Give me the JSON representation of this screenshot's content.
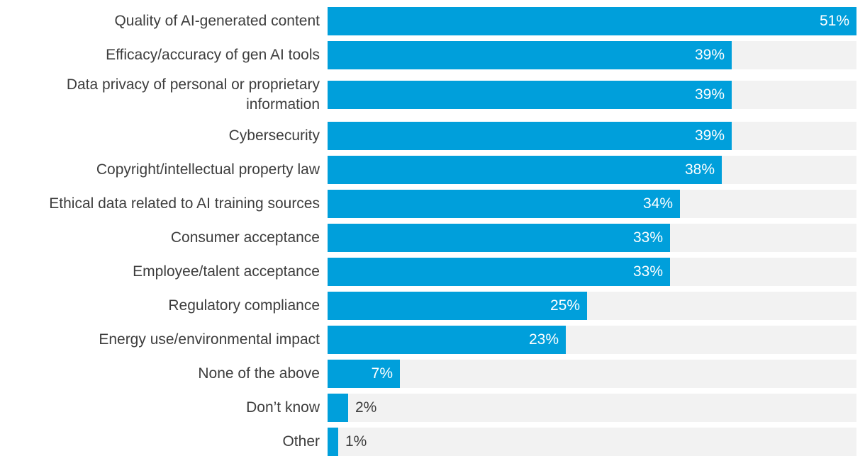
{
  "colors": {
    "bar": "#009fdb",
    "track": "#f2f2f2",
    "text": "#3d3d3d",
    "inside_label": "#ffffff"
  },
  "chart_data": {
    "type": "bar",
    "orientation": "horizontal",
    "title": "",
    "xlabel": "",
    "ylabel": "",
    "xlim": [
      0,
      51
    ],
    "value_suffix": "%",
    "categories": [
      "Quality of AI-generated content",
      "Efficacy/accuracy of gen AI tools",
      "Data privacy of personal or proprietary information",
      "Cybersecurity",
      "Copyright/intellectual property law",
      "Ethical data related to AI training sources",
      "Consumer acceptance",
      "Employee/talent acceptance",
      "Regulatory compliance",
      "Energy use/environmental impact",
      "None of the above",
      "Don’t know",
      "Other"
    ],
    "values": [
      51,
      39,
      39,
      39,
      38,
      34,
      33,
      33,
      25,
      23,
      7,
      2,
      1
    ],
    "value_labels": [
      "51%",
      "39%",
      "39%",
      "39%",
      "38%",
      "34%",
      "33%",
      "33%",
      "25%",
      "23%",
      "7%",
      "2%",
      "1%"
    ]
  }
}
